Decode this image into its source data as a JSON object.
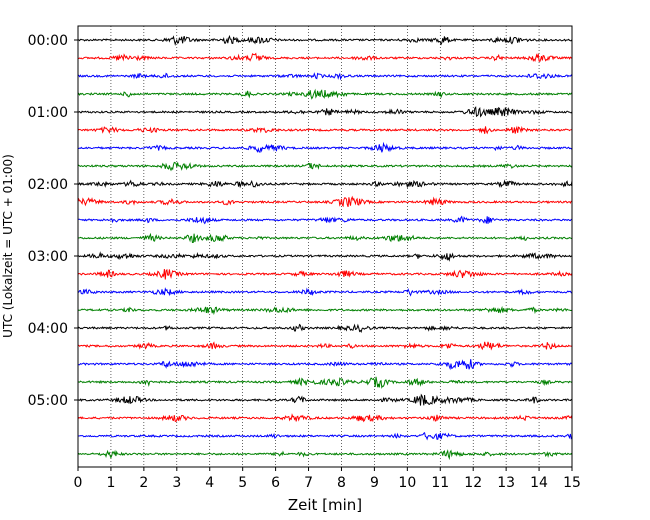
{
  "chart_data": {
    "type": "line",
    "subtype": "helicorder-seismogram",
    "title": "",
    "xlabel": "Zeit  [min]",
    "ylabel": "UTC (Lokalzeit = UTC + 01:00)",
    "xlim": [
      0,
      15
    ],
    "x_ticks": [
      "0",
      "1",
      "2",
      "3",
      "4",
      "5",
      "6",
      "7",
      "8",
      "9",
      "10",
      "11",
      "12",
      "13",
      "14",
      "15"
    ],
    "y_tick_labels": [
      "00:00",
      "01:00",
      "02:00",
      "03:00",
      "04:00",
      "05:00"
    ],
    "minutes_per_row": 15,
    "row_count": 24,
    "color_cycle": [
      "#000000",
      "#ff0000",
      "#0000ff",
      "#008000"
    ],
    "vertical_grid": "dotted at each minute",
    "traces": "continuous low-amplitude noise, no major events"
  }
}
